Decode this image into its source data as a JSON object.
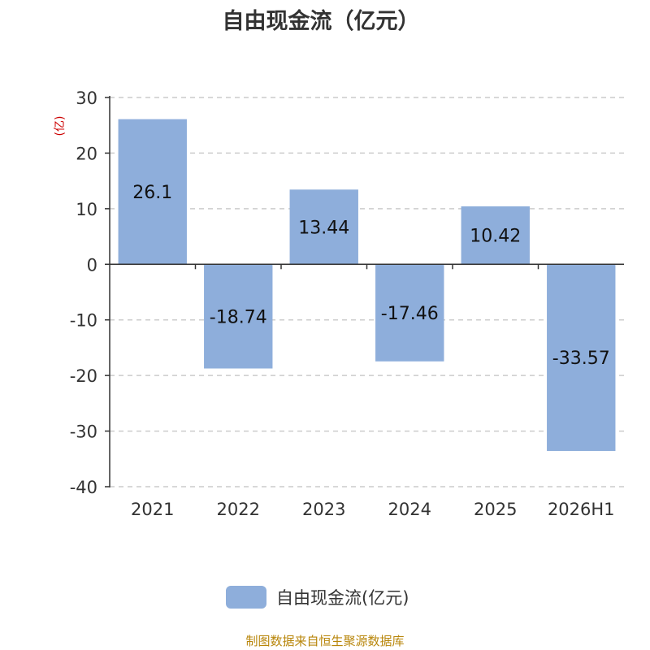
{
  "chart_data": {
    "type": "bar",
    "title": "自由现金流（亿元）",
    "ylabel": "(亿)",
    "categories": [
      "2021",
      "2022",
      "2023",
      "2024",
      "2025",
      "2026H1"
    ],
    "series": [
      {
        "name": "自由现金流(亿元)",
        "values": [
          26.1,
          -18.74,
          13.44,
          -17.46,
          10.42,
          -33.57
        ]
      }
    ],
    "data_labels": [
      "26.1",
      "-18.74",
      "13.44",
      "-17.46",
      "10.42",
      "-33.57"
    ],
    "yticks": [
      30,
      20,
      10,
      0,
      -10,
      -20,
      -30,
      -40
    ],
    "ylim": [
      -40,
      30
    ],
    "grid": true,
    "legend_position": "bottom",
    "colors": {
      "bar": "#8eaedb",
      "ylabel": "#cc0000",
      "source": "#b8860b"
    }
  },
  "footer": {
    "source": "制图数据来自恒生聚源数据库"
  }
}
